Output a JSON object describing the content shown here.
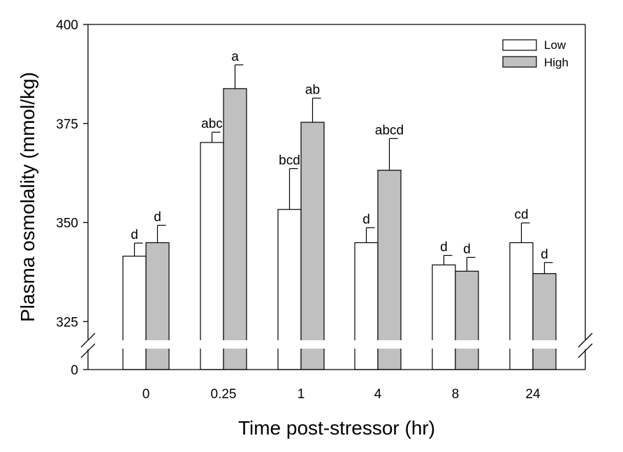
{
  "chart_data": {
    "type": "bar",
    "xlabel": "Time post-stressor (hr)",
    "ylabel": "Plasma osmolality (mmol/kg)",
    "categories": [
      "0",
      "0.25",
      "1",
      "4",
      "8",
      "24"
    ],
    "ylim": [
      320,
      400
    ],
    "yticks": [
      325,
      350,
      375,
      400
    ],
    "y_break_label": "0",
    "series": [
      {
        "name": "Low",
        "color": "#ffffff",
        "values": [
          341.5,
          370.2,
          353.3,
          344.9,
          339.3,
          344.9
        ],
        "errors": [
          3.3,
          2.6,
          10.3,
          3.8,
          2.4,
          5.0
        ],
        "letters": [
          "d",
          "abc",
          "bcd",
          "d",
          "d",
          "cd"
        ]
      },
      {
        "name": "High",
        "color": "#c0c0c0",
        "values": [
          344.9,
          383.8,
          375.3,
          363.2,
          337.7,
          337.1
        ],
        "errors": [
          4.4,
          6.0,
          6.1,
          8.0,
          3.5,
          2.8
        ],
        "letters": [
          "d",
          "a",
          "ab",
          "abcd",
          "d",
          "d"
        ]
      }
    ],
    "legend": {
      "position": "top-right",
      "entries": [
        "Low",
        "High"
      ]
    }
  }
}
